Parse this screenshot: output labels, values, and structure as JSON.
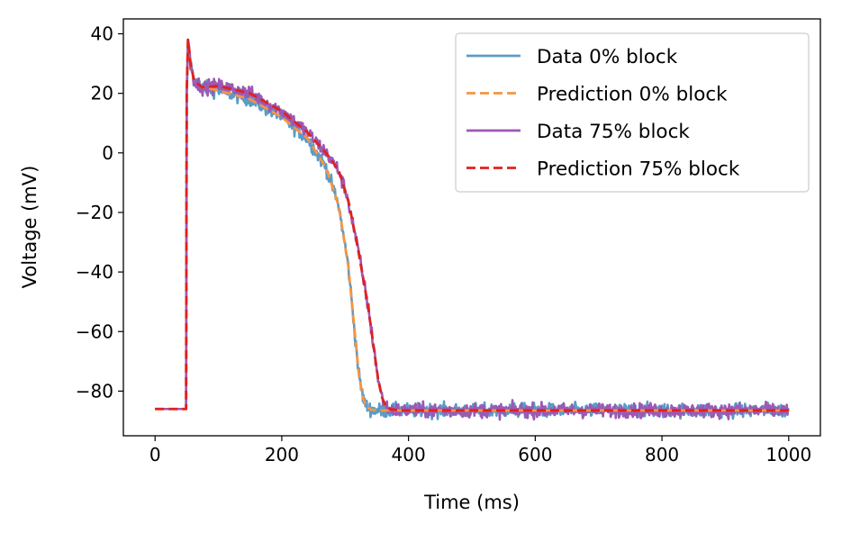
{
  "chart_data": {
    "type": "line",
    "title": "",
    "xlabel": "Time (ms)",
    "ylabel": "Voltage (mV)",
    "xlim": [
      -50,
      1050
    ],
    "ylim": [
      -95,
      45
    ],
    "xticks": [
      0,
      200,
      400,
      600,
      800,
      1000
    ],
    "yticks": [
      40,
      20,
      0,
      -20,
      -40,
      -60,
      -80
    ],
    "xtick_labels": [
      "0",
      "200",
      "400",
      "600",
      "800",
      "1000"
    ],
    "ytick_labels": [
      "40",
      "20",
      "0",
      "−20",
      "−40",
      "−60",
      "−80"
    ],
    "grid": false,
    "legend_position": "top-right",
    "series": [
      {
        "name": "Data 0% block",
        "color": "#5b9bc8",
        "style": "solid",
        "x": [
          0,
          49,
          50,
          52,
          56,
          62,
          75,
          100,
          150,
          200,
          240,
          270,
          290,
          305,
          315,
          322,
          328,
          333,
          340,
          350,
          360,
          1000
        ],
        "y": [
          -86,
          -86,
          20,
          38,
          30,
          24,
          22,
          21,
          18,
          12,
          5,
          -5,
          -18,
          -38,
          -60,
          -75,
          -82,
          -85,
          -86.2,
          -86.5,
          -86.5,
          -86.5
        ],
        "noise": 1.2
      },
      {
        "name": "Prediction 0% block",
        "color": "#f59542",
        "style": "dashed",
        "x": [
          0,
          49,
          50,
          52,
          56,
          62,
          75,
          100,
          150,
          200,
          240,
          270,
          290,
          305,
          315,
          322,
          328,
          333,
          340,
          350,
          360,
          1000
        ],
        "y": [
          -86,
          -86,
          20,
          38,
          30,
          24,
          22,
          21,
          18,
          12,
          5,
          -5,
          -18,
          -38,
          -60,
          -75,
          -82,
          -85,
          -86.2,
          -86.5,
          -86.5,
          -86.5
        ]
      },
      {
        "name": "Data 75% block",
        "color": "#9b59b6",
        "style": "solid",
        "x": [
          0,
          49,
          50,
          52,
          56,
          62,
          75,
          100,
          150,
          200,
          240,
          270,
          290,
          305,
          320,
          335,
          345,
          352,
          358,
          364,
          370,
          385,
          1000
        ],
        "y": [
          -86,
          -86,
          20,
          38,
          30,
          24,
          22,
          22.5,
          20,
          14,
          7,
          0,
          -6,
          -16,
          -32,
          -50,
          -65,
          -76,
          -82,
          -85,
          -86,
          -86.5,
          -86.5
        ],
        "noise": 1.2
      },
      {
        "name": "Prediction 75% block",
        "color": "#e0211f",
        "style": "dashed",
        "x": [
          0,
          49,
          50,
          52,
          56,
          62,
          75,
          100,
          150,
          200,
          240,
          270,
          290,
          305,
          320,
          335,
          345,
          352,
          358,
          364,
          370,
          385,
          1000
        ],
        "y": [
          -86,
          -86,
          20,
          38,
          30,
          24,
          22,
          22.5,
          20,
          14,
          7,
          0,
          -6,
          -16,
          -32,
          -50,
          -65,
          -76,
          -82,
          -85,
          -86,
          -86.5,
          -86.5
        ]
      }
    ]
  }
}
